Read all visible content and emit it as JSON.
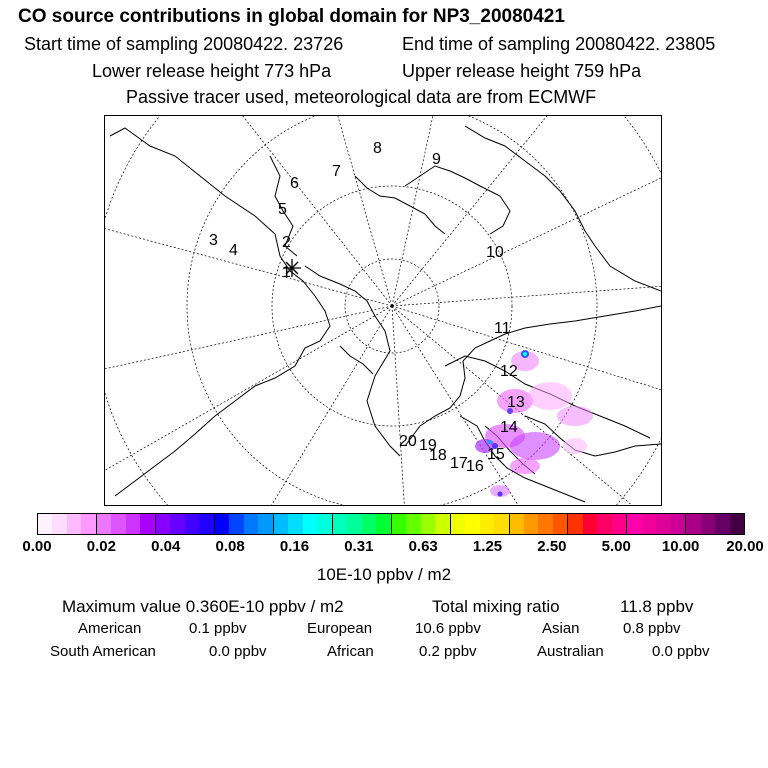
{
  "header": {
    "title": "CO  source contributions in global domain for NP3_20080421",
    "start_label": "Start time of sampling 20080422. 23726",
    "end_label": "End time of sampling 20080422. 23805",
    "lower_label": "Lower release height  773 hPa",
    "upper_label": "Upper release height  759 hPa",
    "passive_label": "Passive tracer used, meteorological data are from ECMWF"
  },
  "map": {
    "trajectory_labels": [
      "1",
      "2",
      "3",
      "4",
      "5",
      "6",
      "7",
      "8",
      "9",
      "10",
      "11",
      "12",
      "13",
      "14",
      "15",
      "16",
      "17",
      "18",
      "19",
      "20"
    ],
    "colors": {
      "tracer": "#ee66ff",
      "tracer_core": "#5533ff",
      "coast": "#000000"
    }
  },
  "colorbar": {
    "ticks": [
      "0.00",
      "0.02",
      "0.04",
      "0.08",
      "0.16",
      "0.31",
      "0.63",
      "1.25",
      "2.50",
      "5.00",
      "10.00",
      "20.00"
    ],
    "colors": [
      "#fff2ff",
      "#ffddff",
      "#ffbbff",
      "#ff99ff",
      "#ee77ff",
      "#dd55ff",
      "#cc33ff",
      "#aa00ff",
      "#8800ff",
      "#6600ff",
      "#4400ff",
      "#2200ff",
      "#0000ff",
      "#0044ff",
      "#0077ff",
      "#0099ff",
      "#00bbff",
      "#00ddff",
      "#00ffff",
      "#00ffdd",
      "#00ffbb",
      "#00ff99",
      "#00ff66",
      "#00ff33",
      "#33ff00",
      "#66ff00",
      "#99ff00",
      "#ccff00",
      "#eeff00",
      "#ffff00",
      "#ffee00",
      "#ffdd00",
      "#ffbb00",
      "#ff9900",
      "#ff7700",
      "#ff5500",
      "#ff3300",
      "#ff0033",
      "#ff0066",
      "#ff0088",
      "#ff00aa",
      "#ee0099",
      "#dd0099",
      "#cc0099",
      "#aa0088",
      "#880077",
      "#660066",
      "#440044"
    ],
    "units": "10E-10 ppbv / m2"
  },
  "stats": {
    "max_label": "Maximum value  0.360E-10 ppbv / m2",
    "total_label": "Total mixing ratio",
    "total_value": "11.8 ppbv"
  },
  "regions": [
    {
      "name": "American",
      "value": "0.1 ppbv"
    },
    {
      "name": "European",
      "value": "10.6 ppbv"
    },
    {
      "name": "Asian",
      "value": "0.8 ppbv"
    },
    {
      "name": "South American",
      "value": "0.0 ppbv"
    },
    {
      "name": "African",
      "value": "0.2 ppbv"
    },
    {
      "name": "Australian",
      "value": "0.0 ppbv"
    }
  ]
}
